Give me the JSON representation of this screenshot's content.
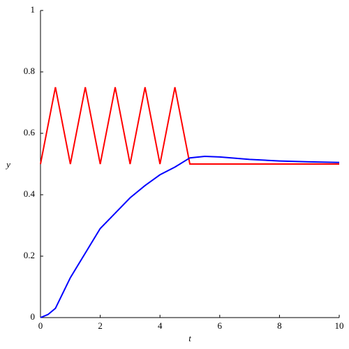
{
  "chart_data": {
    "type": "line",
    "xlabel": "t",
    "ylabel": "y",
    "xlim": [
      0,
      10
    ],
    "ylim": [
      0,
      1
    ],
    "xticks": [
      0,
      2,
      4,
      6,
      8,
      10
    ],
    "yticks": [
      0,
      0.2,
      0.4,
      0.6,
      0.8,
      1
    ],
    "series": [
      {
        "color": "#ff0000",
        "x": [
          0,
          0.5,
          1,
          1.5,
          2,
          2.5,
          3,
          3.5,
          4,
          4.5,
          5,
          10
        ],
        "values": [
          0.5,
          0.75,
          0.5,
          0.75,
          0.5,
          0.75,
          0.5,
          0.75,
          0.5,
          0.75,
          0.5,
          0.5
        ]
      },
      {
        "color": "#0000ff",
        "x": [
          0,
          0.25,
          0.5,
          0.75,
          1,
          1.5,
          2,
          2.5,
          3,
          3.5,
          4,
          4.5,
          5,
          5.5,
          6,
          7,
          8,
          9,
          10
        ],
        "values": [
          0,
          0.01,
          0.03,
          0.08,
          0.13,
          0.21,
          0.29,
          0.34,
          0.39,
          0.43,
          0.465,
          0.49,
          0.52,
          0.525,
          0.523,
          0.515,
          0.51,
          0.507,
          0.505
        ]
      }
    ]
  }
}
